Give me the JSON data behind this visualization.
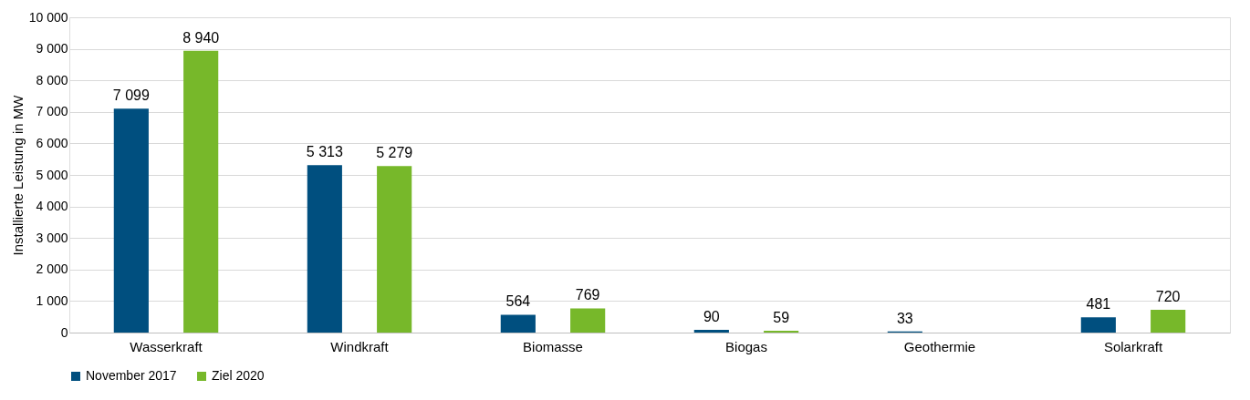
{
  "chart_data": {
    "type": "bar",
    "ylabel": "Installierte Leistung in MW",
    "categories": [
      "Wasserkraft",
      "Windkraft",
      "Biomasse",
      "Biogas",
      "Geothermie",
      "Solarkraft"
    ],
    "series": [
      {
        "name": "November 2017",
        "color": "#004f7f",
        "values": [
          7099,
          5313,
          564,
          90,
          33,
          481
        ],
        "value_labels": [
          "7 099",
          "5 313",
          "564",
          "90",
          "33",
          "481"
        ]
      },
      {
        "name": "Ziel 2020",
        "color": "#77b82a",
        "values": [
          8940,
          5279,
          769,
          59,
          null,
          720
        ],
        "value_labels": [
          "8 940",
          "5 279",
          "769",
          "59",
          null,
          "720"
        ]
      }
    ],
    "ylim": [
      0,
      10000
    ],
    "yticks": [
      {
        "value": 0,
        "label": "0"
      },
      {
        "value": 1000,
        "label": "1 000"
      },
      {
        "value": 2000,
        "label": "2 000"
      },
      {
        "value": 3000,
        "label": "3 000"
      },
      {
        "value": 4000,
        "label": "4 000"
      },
      {
        "value": 5000,
        "label": "5 000"
      },
      {
        "value": 6000,
        "label": "6 000"
      },
      {
        "value": 7000,
        "label": "7 000"
      },
      {
        "value": 8000,
        "label": "8 000"
      },
      {
        "value": 9000,
        "label": "9 000"
      },
      {
        "value": 10000,
        "label": "10 000"
      }
    ],
    "grid": "y",
    "legend": "bottom"
  }
}
